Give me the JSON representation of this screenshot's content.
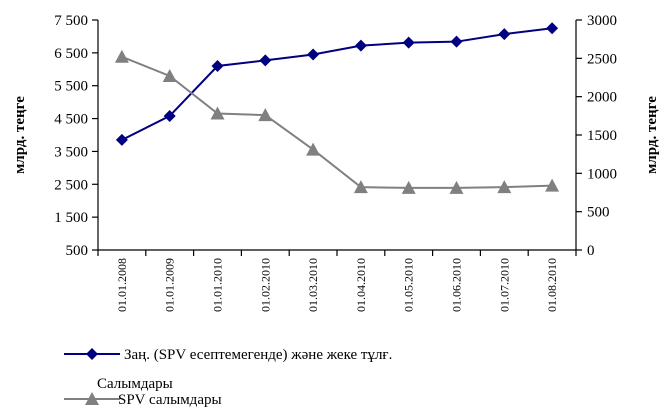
{
  "chart_data": {
    "type": "line",
    "categories": [
      "01.01.2008",
      "01.01.2009",
      "01.01.2010",
      "01.02.2010",
      "01.03.2010",
      "01.04.2010",
      "01.05.2010",
      "01.06.2010",
      "01.07.2010",
      "01.08.2010"
    ],
    "series": [
      {
        "name": "Заң. (SPV есептемегенде) және жеке тұлғ. Салымдары",
        "axis": "left",
        "color": "#000080",
        "marker": "diamond",
        "values": [
          3850,
          4580,
          6100,
          6270,
          6450,
          6720,
          6810,
          6840,
          7070,
          7250
        ]
      },
      {
        "name": "SPV салымдары",
        "axis": "right",
        "color": "#808080",
        "marker": "triangle",
        "values": [
          2520,
          2270,
          1780,
          1760,
          1310,
          820,
          810,
          810,
          820,
          840
        ]
      }
    ],
    "y_left": {
      "label": "млрд. теңге",
      "ylim": [
        500,
        7500
      ],
      "ticks": [
        "7 500",
        "6 500",
        "5 500",
        "4 500",
        "3 500",
        "2 500",
        "1 500",
        "500"
      ],
      "tick_values": [
        7500,
        6500,
        5500,
        4500,
        3500,
        2500,
        1500,
        500
      ]
    },
    "y_right": {
      "label": "млрд. теңге",
      "ylim": [
        0,
        3000
      ],
      "ticks": [
        "3000",
        "2500",
        "2000",
        "1500",
        "1000",
        "500",
        "0"
      ],
      "tick_values": [
        3000,
        2500,
        2000,
        1500,
        1000,
        500,
        0
      ]
    },
    "grid": false,
    "legend_position": "bottom-left"
  }
}
